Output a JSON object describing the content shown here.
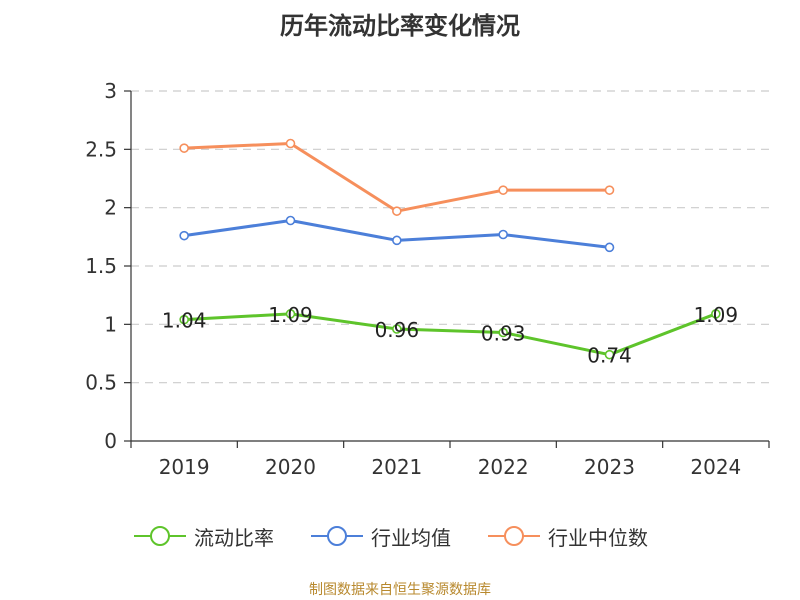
{
  "chart_data": {
    "type": "line",
    "title": "历年流动比率变化情况",
    "categories": [
      "2019",
      "2020",
      "2021",
      "2022",
      "2023",
      "2024"
    ],
    "ylim": [
      0,
      3
    ],
    "yticks": [
      0,
      0.5,
      1,
      1.5,
      2,
      2.5,
      3
    ],
    "ytick_labels": [
      "0",
      "0.5",
      "1",
      "1.5",
      "2",
      "2.5",
      "3"
    ],
    "grid": true,
    "legend_position": "bottom",
    "series": [
      {
        "name": "流动比率",
        "color": "#5ec42b",
        "values": [
          1.04,
          1.09,
          0.96,
          0.93,
          0.74,
          1.09
        ],
        "labels": [
          "1.04",
          "1.09",
          "0.96",
          "0.93",
          "0.74",
          "1.09"
        ],
        "show_labels": true
      },
      {
        "name": "行业均值",
        "color": "#4c7fd9",
        "values": [
          1.76,
          1.89,
          1.72,
          1.77,
          1.66,
          null
        ],
        "show_labels": false
      },
      {
        "name": "行业中位数",
        "color": "#f68f5c",
        "values": [
          2.51,
          2.55,
          1.97,
          2.15,
          2.15,
          null
        ],
        "show_labels": false
      }
    ]
  },
  "source_note": "制图数据来自恒生聚源数据库"
}
